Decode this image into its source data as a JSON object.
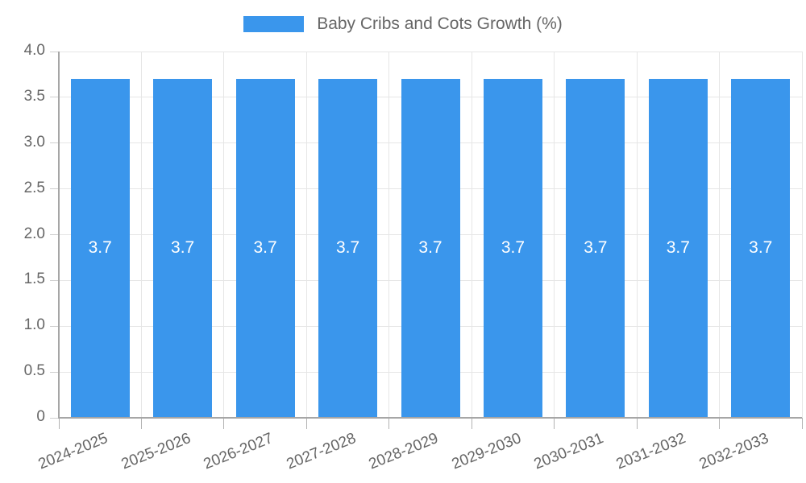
{
  "chart_data": {
    "type": "bar",
    "title": "Baby Cribs and Cots Growth (%)",
    "legend": {
      "position": "top",
      "label": "Baby Cribs and Cots Growth (%)"
    },
    "categories": [
      "2024-2025",
      "2025-2026",
      "2026-2027",
      "2027-2028",
      "2028-2029",
      "2029-2030",
      "2030-2031",
      "2031-2032",
      "2032-2033"
    ],
    "values": [
      3.7,
      3.7,
      3.7,
      3.7,
      3.7,
      3.7,
      3.7,
      3.7,
      3.7
    ],
    "value_labels": [
      "3.7",
      "3.7",
      "3.7",
      "3.7",
      "3.7",
      "3.7",
      "3.7",
      "3.7",
      "3.7"
    ],
    "xlabel": "",
    "ylabel": "",
    "ylim": [
      0,
      4.0
    ],
    "ytick_labels": [
      "4.0",
      "3.5",
      "3.0",
      "2.5",
      "2.0",
      "1.5",
      "1.0",
      "0.5",
      "0"
    ],
    "ytick_values": [
      4.0,
      3.5,
      3.0,
      2.5,
      2.0,
      1.5,
      1.0,
      0.5,
      0
    ],
    "grid": true,
    "colors": {
      "bar": "#3a96ec",
      "grid": "#e6e6e6",
      "axis": "#a6a6a6",
      "tick_text": "#666666",
      "bar_label_text": "#ffffff",
      "background": "#ffffff"
    }
  }
}
